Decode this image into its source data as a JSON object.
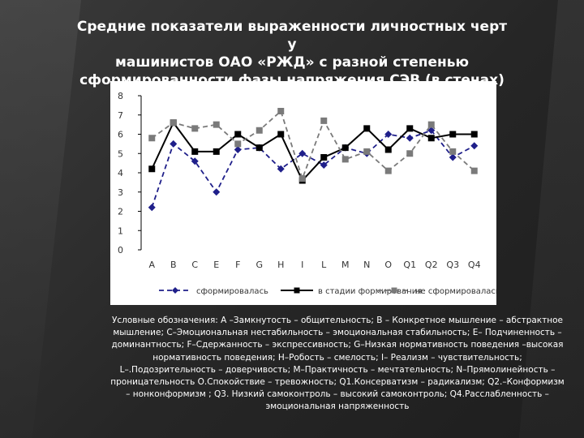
{
  "title": {
    "line1": "Средние показатели выраженности личностных черт у",
    "line2": "машинистов  ОАО «РЖД» с разной степенью",
    "line3": "сформированности фазы напряжения СЭВ  (в стенах)"
  },
  "chart_data": {
    "type": "line",
    "title": "",
    "xlabel": "",
    "ylabel": "",
    "categories": [
      "A",
      "B",
      "C",
      "E",
      "F",
      "G",
      "H",
      "I",
      "L",
      "M",
      "N",
      "O",
      "Q1",
      "Q2",
      "Q3",
      "Q4"
    ],
    "ylim": [
      0,
      8
    ],
    "yticks": [
      "0",
      "1",
      "2",
      "3",
      "4",
      "5",
      "6",
      "7",
      "8"
    ],
    "grid": false,
    "legend_position": "bottom",
    "series": [
      {
        "name": "сформировалась",
        "color": "#1f1f8a",
        "marker": "diamond",
        "line": "dashed",
        "values": [
          2.2,
          5.5,
          4.6,
          3.0,
          5.2,
          5.3,
          4.2,
          5.0,
          4.4,
          5.3,
          5.0,
          6.0,
          5.8,
          6.2,
          4.8,
          5.4
        ]
      },
      {
        "name": "в стадии формирования",
        "color": "#000000",
        "marker": "square",
        "line": "solid",
        "values": [
          4.2,
          6.6,
          5.1,
          5.1,
          6.0,
          5.3,
          6.0,
          3.6,
          4.8,
          5.3,
          6.3,
          5.2,
          6.3,
          5.8,
          6.0,
          6.0
        ]
      },
      {
        "name": "не сформировалась",
        "color": "#7a7a7a",
        "marker": "square",
        "line": "dashed",
        "values": [
          5.8,
          6.6,
          6.3,
          6.5,
          5.5,
          6.2,
          7.2,
          3.7,
          6.7,
          4.7,
          5.1,
          4.1,
          5.0,
          6.5,
          5.1,
          4.1
        ]
      }
    ]
  },
  "legend_text": {
    "p1": "Условные обозначения: А –Замкнутость – общительность; В – Конкретное мышление – абстрактное мышление; С–Эмоциональная нестабильность – эмоциональная стабильность; Е– Подчиненность – доминантность; F–Сдержанность – экспрессивность; G–Низкая нормативность поведения –высокая нормативность поведения; Н–Робость – смелость; I– Реализм – чувствительность; L–.Подозрительность – доверчивость; М–Практичность – мечтательность; N–Прямолинейность – проницательность О.Спокойствие – тревожность; Q1.Консерватизм – радикализм; Q2.–Конформизм – нонконформизм ; Q3. Низкий самоконтроль – высокий самоконтроль; Q4.Расслабленность – эмоциональная напряженность"
  }
}
